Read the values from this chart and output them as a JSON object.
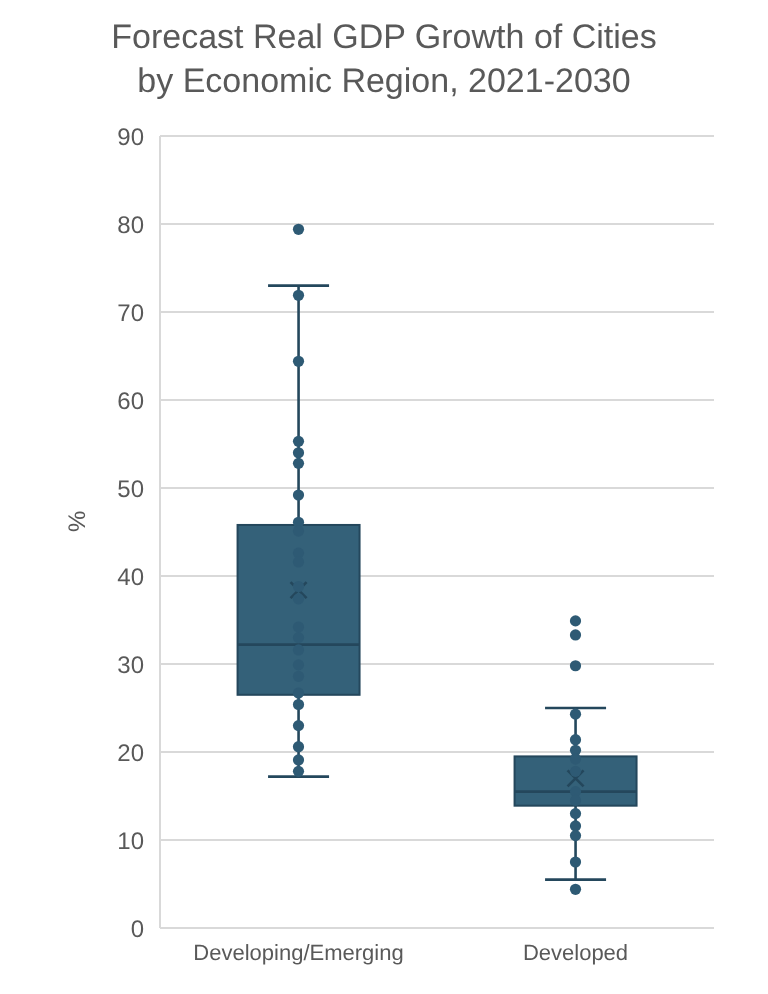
{
  "chart_data": {
    "type": "box",
    "title": "Forecast Real GDP Growth of Cities by Economic Region, 2021-2030",
    "ylabel": "%",
    "categories": [
      "Developing/Emerging",
      "Developed"
    ],
    "color": "#346179",
    "ylim": [
      0,
      90
    ],
    "yticks": [
      0,
      10,
      20,
      30,
      40,
      50,
      60,
      70,
      80,
      90
    ],
    "grid": "y",
    "boxes": [
      {
        "low": 17.2,
        "q1": 26.5,
        "median": 32.2,
        "q3": 45.8,
        "high": 73.0,
        "mean": 38.4,
        "outliers": [
          79.4
        ]
      },
      {
        "low": 5.5,
        "q1": 13.9,
        "median": 15.5,
        "q3": 19.5,
        "high": 25.0,
        "mean": 17.0,
        "outliers": [
          34.9,
          33.3,
          29.8,
          4.4
        ]
      }
    ],
    "series": [
      {
        "type": "scatter",
        "color": "#2e5a74",
        "x": [
          "Developing/Emerging",
          "Developing/Emerging",
          "Developing/Emerging",
          "Developing/Emerging",
          "Developing/Emerging",
          "Developing/Emerging",
          "Developing/Emerging",
          "Developing/Emerging",
          "Developing/Emerging",
          "Developing/Emerging",
          "Developing/Emerging",
          "Developing/Emerging",
          "Developing/Emerging",
          "Developing/Emerging",
          "Developing/Emerging",
          "Developing/Emerging",
          "Developing/Emerging",
          "Developing/Emerging",
          "Developing/Emerging",
          "Developing/Emerging",
          "Developing/Emerging",
          "Developing/Emerging",
          "Developing/Emerging",
          "Developed",
          "Developed",
          "Developed",
          "Developed",
          "Developed",
          "Developed",
          "Developed",
          "Developed",
          "Developed",
          "Developed",
          "Developed"
        ],
        "values": [
          71.9,
          64.4,
          55.3,
          54.0,
          52.8,
          49.2,
          46.1,
          45.1,
          42.6,
          41.6,
          38.8,
          37.4,
          34.2,
          33.0,
          31.6,
          29.9,
          28.6,
          26.7,
          25.4,
          23.0,
          20.6,
          19.1,
          17.8,
          24.3,
          21.4,
          20.2,
          19.2,
          17.8,
          15.5,
          14.5,
          13.0,
          11.6,
          10.5,
          7.5
        ]
      }
    ]
  }
}
